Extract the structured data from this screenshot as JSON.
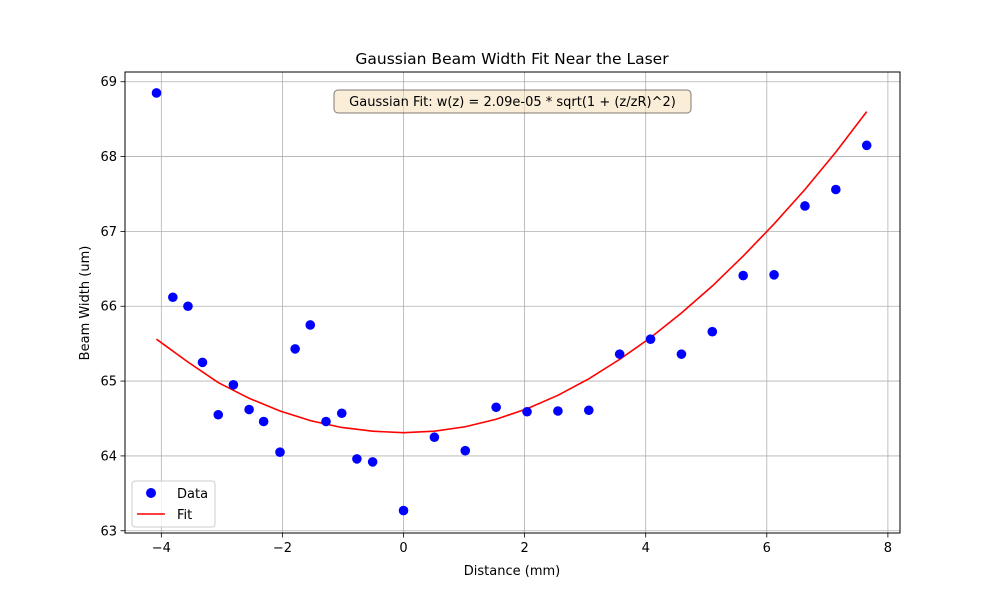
{
  "chart_data": {
    "type": "scatter",
    "title": "Gaussian Beam Width Fit Near the Laser",
    "xlabel": "Distance (mm)",
    "ylabel": "Beam Width (um)",
    "xlim": [
      -4.6,
      8.2
    ],
    "ylim": [
      62.97,
      69.13
    ],
    "x_ticks": [
      -4,
      -2,
      0,
      2,
      4,
      6,
      8
    ],
    "x_tick_labels": [
      "−4",
      "−2",
      "0",
      "2",
      "4",
      "6",
      "8"
    ],
    "y_ticks": [
      63,
      64,
      65,
      66,
      67,
      68,
      69
    ],
    "y_tick_labels": [
      "63",
      "64",
      "65",
      "66",
      "67",
      "68",
      "69"
    ],
    "grid": true,
    "annotation": "Gaussian Fit: w(z) = 2.09e-05 * sqrt(1 + (z/zR)^2)",
    "legend": {
      "position": "lower-left",
      "entries": [
        "Data",
        "Fit"
      ]
    },
    "series": [
      {
        "name": "Data",
        "kind": "scatter",
        "color": "#0000ff",
        "x": [
          -4.08,
          -3.81,
          -3.56,
          -3.32,
          -3.06,
          -2.81,
          -2.55,
          -2.31,
          -2.04,
          -1.79,
          -1.54,
          -1.28,
          -1.02,
          -0.77,
          -0.51,
          0.0,
          0.51,
          1.02,
          1.53,
          2.04,
          2.55,
          3.06,
          3.57,
          4.08,
          4.59,
          5.1,
          5.61,
          6.12,
          6.63,
          7.14,
          7.65
        ],
        "y": [
          68.85,
          66.12,
          66.0,
          65.25,
          64.55,
          64.95,
          64.62,
          64.46,
          64.05,
          65.43,
          65.75,
          64.46,
          64.57,
          63.96,
          63.92,
          63.27,
          64.25,
          64.07,
          64.65,
          64.59,
          64.6,
          64.61,
          65.36,
          65.56,
          65.36,
          65.66,
          66.41,
          66.42,
          67.34,
          67.56,
          68.15
        ]
      },
      {
        "name": "Fit",
        "kind": "line",
        "color": "#ff0000",
        "x": [
          -4.08,
          -3.57,
          -3.06,
          -2.55,
          -2.04,
          -1.53,
          -1.02,
          -0.51,
          0.0,
          0.51,
          1.02,
          1.53,
          2.04,
          2.55,
          3.06,
          3.57,
          4.08,
          4.59,
          5.1,
          5.61,
          6.12,
          6.63,
          7.14,
          7.65
        ],
        "y": [
          65.56,
          65.26,
          64.98,
          64.77,
          64.6,
          64.47,
          64.38,
          64.33,
          64.31,
          64.33,
          64.39,
          64.49,
          64.63,
          64.81,
          65.03,
          65.29,
          65.58,
          65.91,
          66.27,
          66.67,
          67.1,
          67.56,
          68.06,
          68.6
        ]
      }
    ]
  }
}
